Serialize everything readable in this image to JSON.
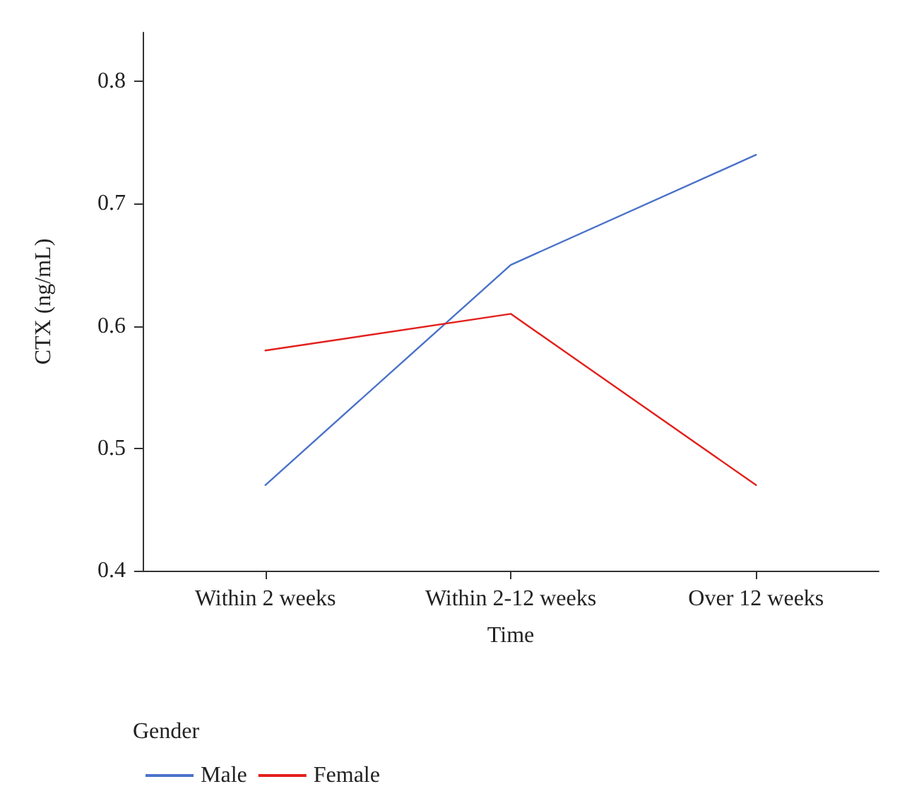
{
  "chart_data": {
    "type": "line",
    "xlabel": "Time",
    "ylabel": "CTX (ng/mL)",
    "legend_title": "Gender",
    "categories": [
      "Within 2 weeks",
      "Within 2-12 weeks",
      "Over 12 weeks"
    ],
    "series": [
      {
        "name": "Male",
        "color": "#4a72c9",
        "values": [
          0.47,
          0.65,
          0.74
        ]
      },
      {
        "name": "Female",
        "color": "#e3201c",
        "values": [
          0.58,
          0.61,
          0.47
        ]
      }
    ],
    "ylim": [
      0.4,
      0.84
    ],
    "yticks": [
      0.4,
      0.5,
      0.6,
      0.7,
      0.8
    ],
    "grid": false,
    "legend": "bottom left",
    "marker": "none",
    "line_style": "solid"
  }
}
